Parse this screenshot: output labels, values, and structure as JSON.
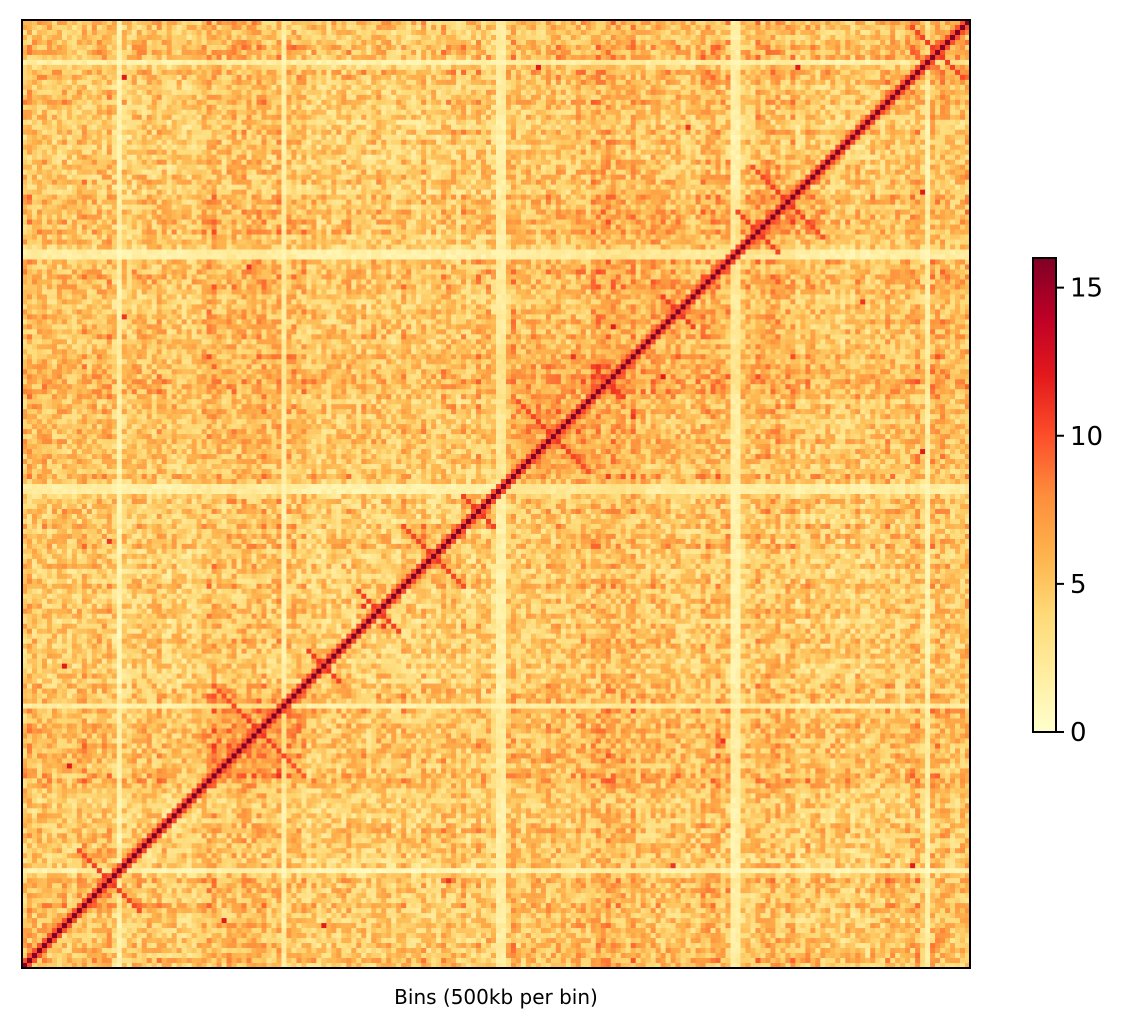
{
  "chart_data": {
    "type": "heatmap",
    "title": "",
    "xlabel": "Bins (500kb per bin)",
    "ylabel": "",
    "xticks": [],
    "yticks": [],
    "colormap": {
      "name": "YlOrRd",
      "stops": [
        "#ffffcc",
        "#ffeda0",
        "#fed976",
        "#feb24c",
        "#fd8d3c",
        "#fc4e2a",
        "#e31a1c",
        "#bd0026",
        "#800026"
      ]
    },
    "colorbar": {
      "min": 0,
      "max": 16,
      "ticks": [
        0,
        5,
        10,
        15
      ],
      "tick_labels": [
        "0",
        "5",
        "10",
        "15"
      ]
    },
    "matrix": {
      "bins": 190,
      "symmetric": true,
      "diagonal_value": 16,
      "background_range": [
        2,
        7
      ],
      "compartment_bands": [
        {
          "bins": [
            0,
            18
          ],
          "value_boost": 1.0
        },
        {
          "bins": [
            34,
            54
          ],
          "value_boost": 1.5
        },
        {
          "bins": [
            95,
            125
          ],
          "value_boost": 1.5
        },
        {
          "bins": [
            115,
            155
          ],
          "value_boost": 1.2
        },
        {
          "bins": [
            170,
            190
          ],
          "value_boost": 1.0
        }
      ],
      "low_coverage_bins": [
        19,
        52,
        95,
        96,
        142,
        143,
        181
      ],
      "domains": [
        {
          "center": 183,
          "half_width": 5
        },
        {
          "center": 153,
          "half_width": 7
        },
        {
          "center": 147,
          "half_width": 4
        },
        {
          "center": 131,
          "half_width": 3
        },
        {
          "center": 117,
          "half_width": 3
        },
        {
          "center": 106,
          "half_width": 7
        },
        {
          "center": 91,
          "half_width": 3
        },
        {
          "center": 82,
          "half_width": 6
        },
        {
          "center": 71,
          "half_width": 4
        },
        {
          "center": 60,
          "half_width": 3
        },
        {
          "center": 47,
          "half_width": 9
        },
        {
          "center": 17,
          "half_width": 6
        }
      ],
      "off_diagonal_hotspots": [
        {
          "row": 9,
          "col": 40,
          "value": 12
        },
        {
          "row": 17,
          "col": 85,
          "value": 11
        },
        {
          "row": 60,
          "col": 8,
          "value": 12
        },
        {
          "row": 68,
          "col": 72,
          "value": 11
        },
        {
          "row": 103,
          "col": 180,
          "value": 12
        },
        {
          "row": 110,
          "col": 122,
          "value": 11
        },
        {
          "row": 118,
          "col": 128,
          "value": 12
        },
        {
          "row": 130,
          "col": 20,
          "value": 11
        },
        {
          "row": 140,
          "col": 45,
          "value": 11
        },
        {
          "row": 155,
          "col": 180,
          "value": 12
        },
        {
          "row": 168,
          "col": 133,
          "value": 11
        },
        {
          "row": 178,
          "col": 20,
          "value": 12
        }
      ]
    }
  }
}
